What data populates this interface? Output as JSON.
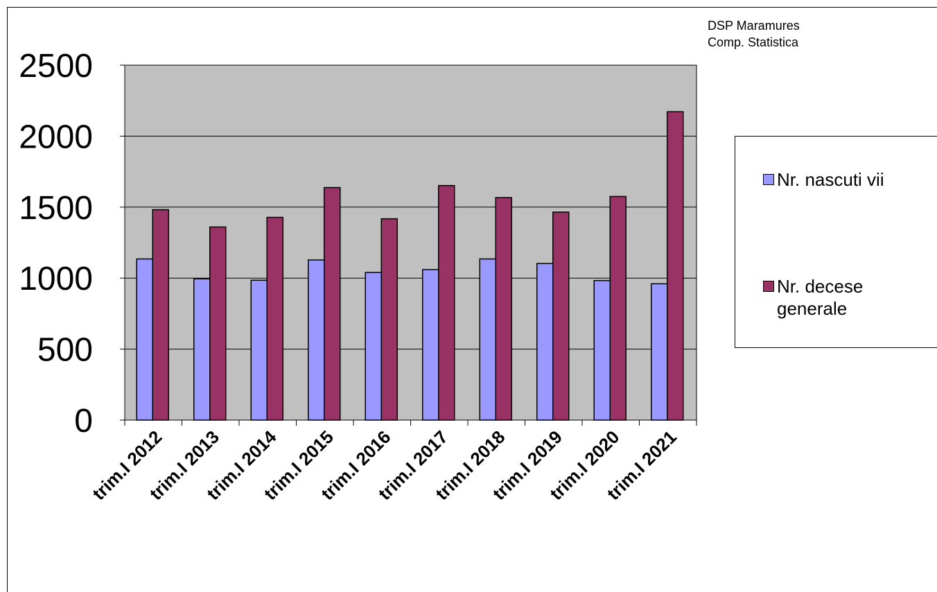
{
  "source_note": {
    "line1": "DSP Maramures",
    "line2": "Comp. Statistica"
  },
  "colors": {
    "plot_background": "#c0c0c0",
    "series_births": "#9999ff",
    "series_deaths": "#993366",
    "gridline": "#000000"
  },
  "chart_data": {
    "type": "bar",
    "title": "",
    "xlabel": "",
    "ylabel": "",
    "categories": [
      "trim.I 2012",
      "trim.I 2013",
      "trim.I 2014",
      "trim.I 2015",
      "trim.I 2016",
      "trim.I 2017",
      "trim.I 2018",
      "trim.I 2019",
      "trim.I 2020",
      "trim.I 2021"
    ],
    "series": [
      {
        "name": "Nr. nascuti vii",
        "values": [
          1135,
          995,
          985,
          1128,
          1040,
          1060,
          1135,
          1103,
          983,
          960
        ]
      },
      {
        "name": "Nr. decese generale",
        "values": [
          1482,
          1360,
          1428,
          1638,
          1418,
          1652,
          1567,
          1465,
          1575,
          2172
        ]
      }
    ],
    "ylim": [
      0,
      2500
    ],
    "yticks": [
      "0",
      "500",
      "1000",
      "1500",
      "2000",
      "2500"
    ],
    "grid": true,
    "legend_position": "right"
  },
  "legend": {
    "items": [
      {
        "label": "Nr. nascuti vii"
      },
      {
        "label": "Nr. decese generale"
      }
    ]
  }
}
